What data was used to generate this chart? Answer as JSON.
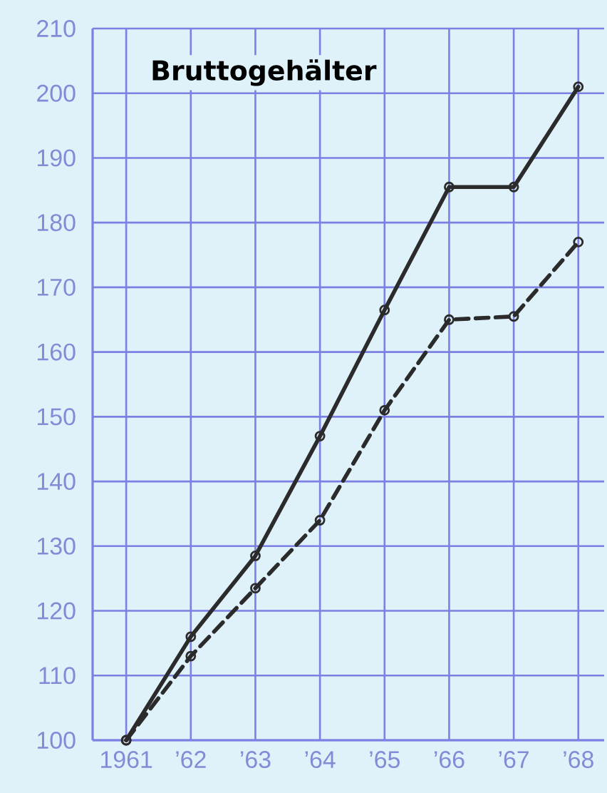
{
  "chart_data": {
    "type": "line",
    "title": "Bruttogehälter",
    "categories": [
      "1961",
      "’62",
      "’63",
      "’64",
      "’65",
      "’66",
      "’67",
      "’68"
    ],
    "series": [
      {
        "color": "#2b2b2b",
        "line_style": "solid",
        "values": [
          100,
          116,
          128.5,
          147,
          166.5,
          185.5,
          185.5,
          201
        ]
      },
      {
        "color": "#2b2b2b",
        "line_style": "dashed",
        "values": [
          100,
          113,
          123.5,
          134,
          151,
          165,
          165.5,
          177
        ]
      }
    ],
    "ylim": [
      100,
      210
    ],
    "yticks": [
      100,
      110,
      120,
      130,
      140,
      150,
      160,
      170,
      180,
      190,
      200,
      210
    ],
    "grid": true,
    "marker": "circle"
  }
}
